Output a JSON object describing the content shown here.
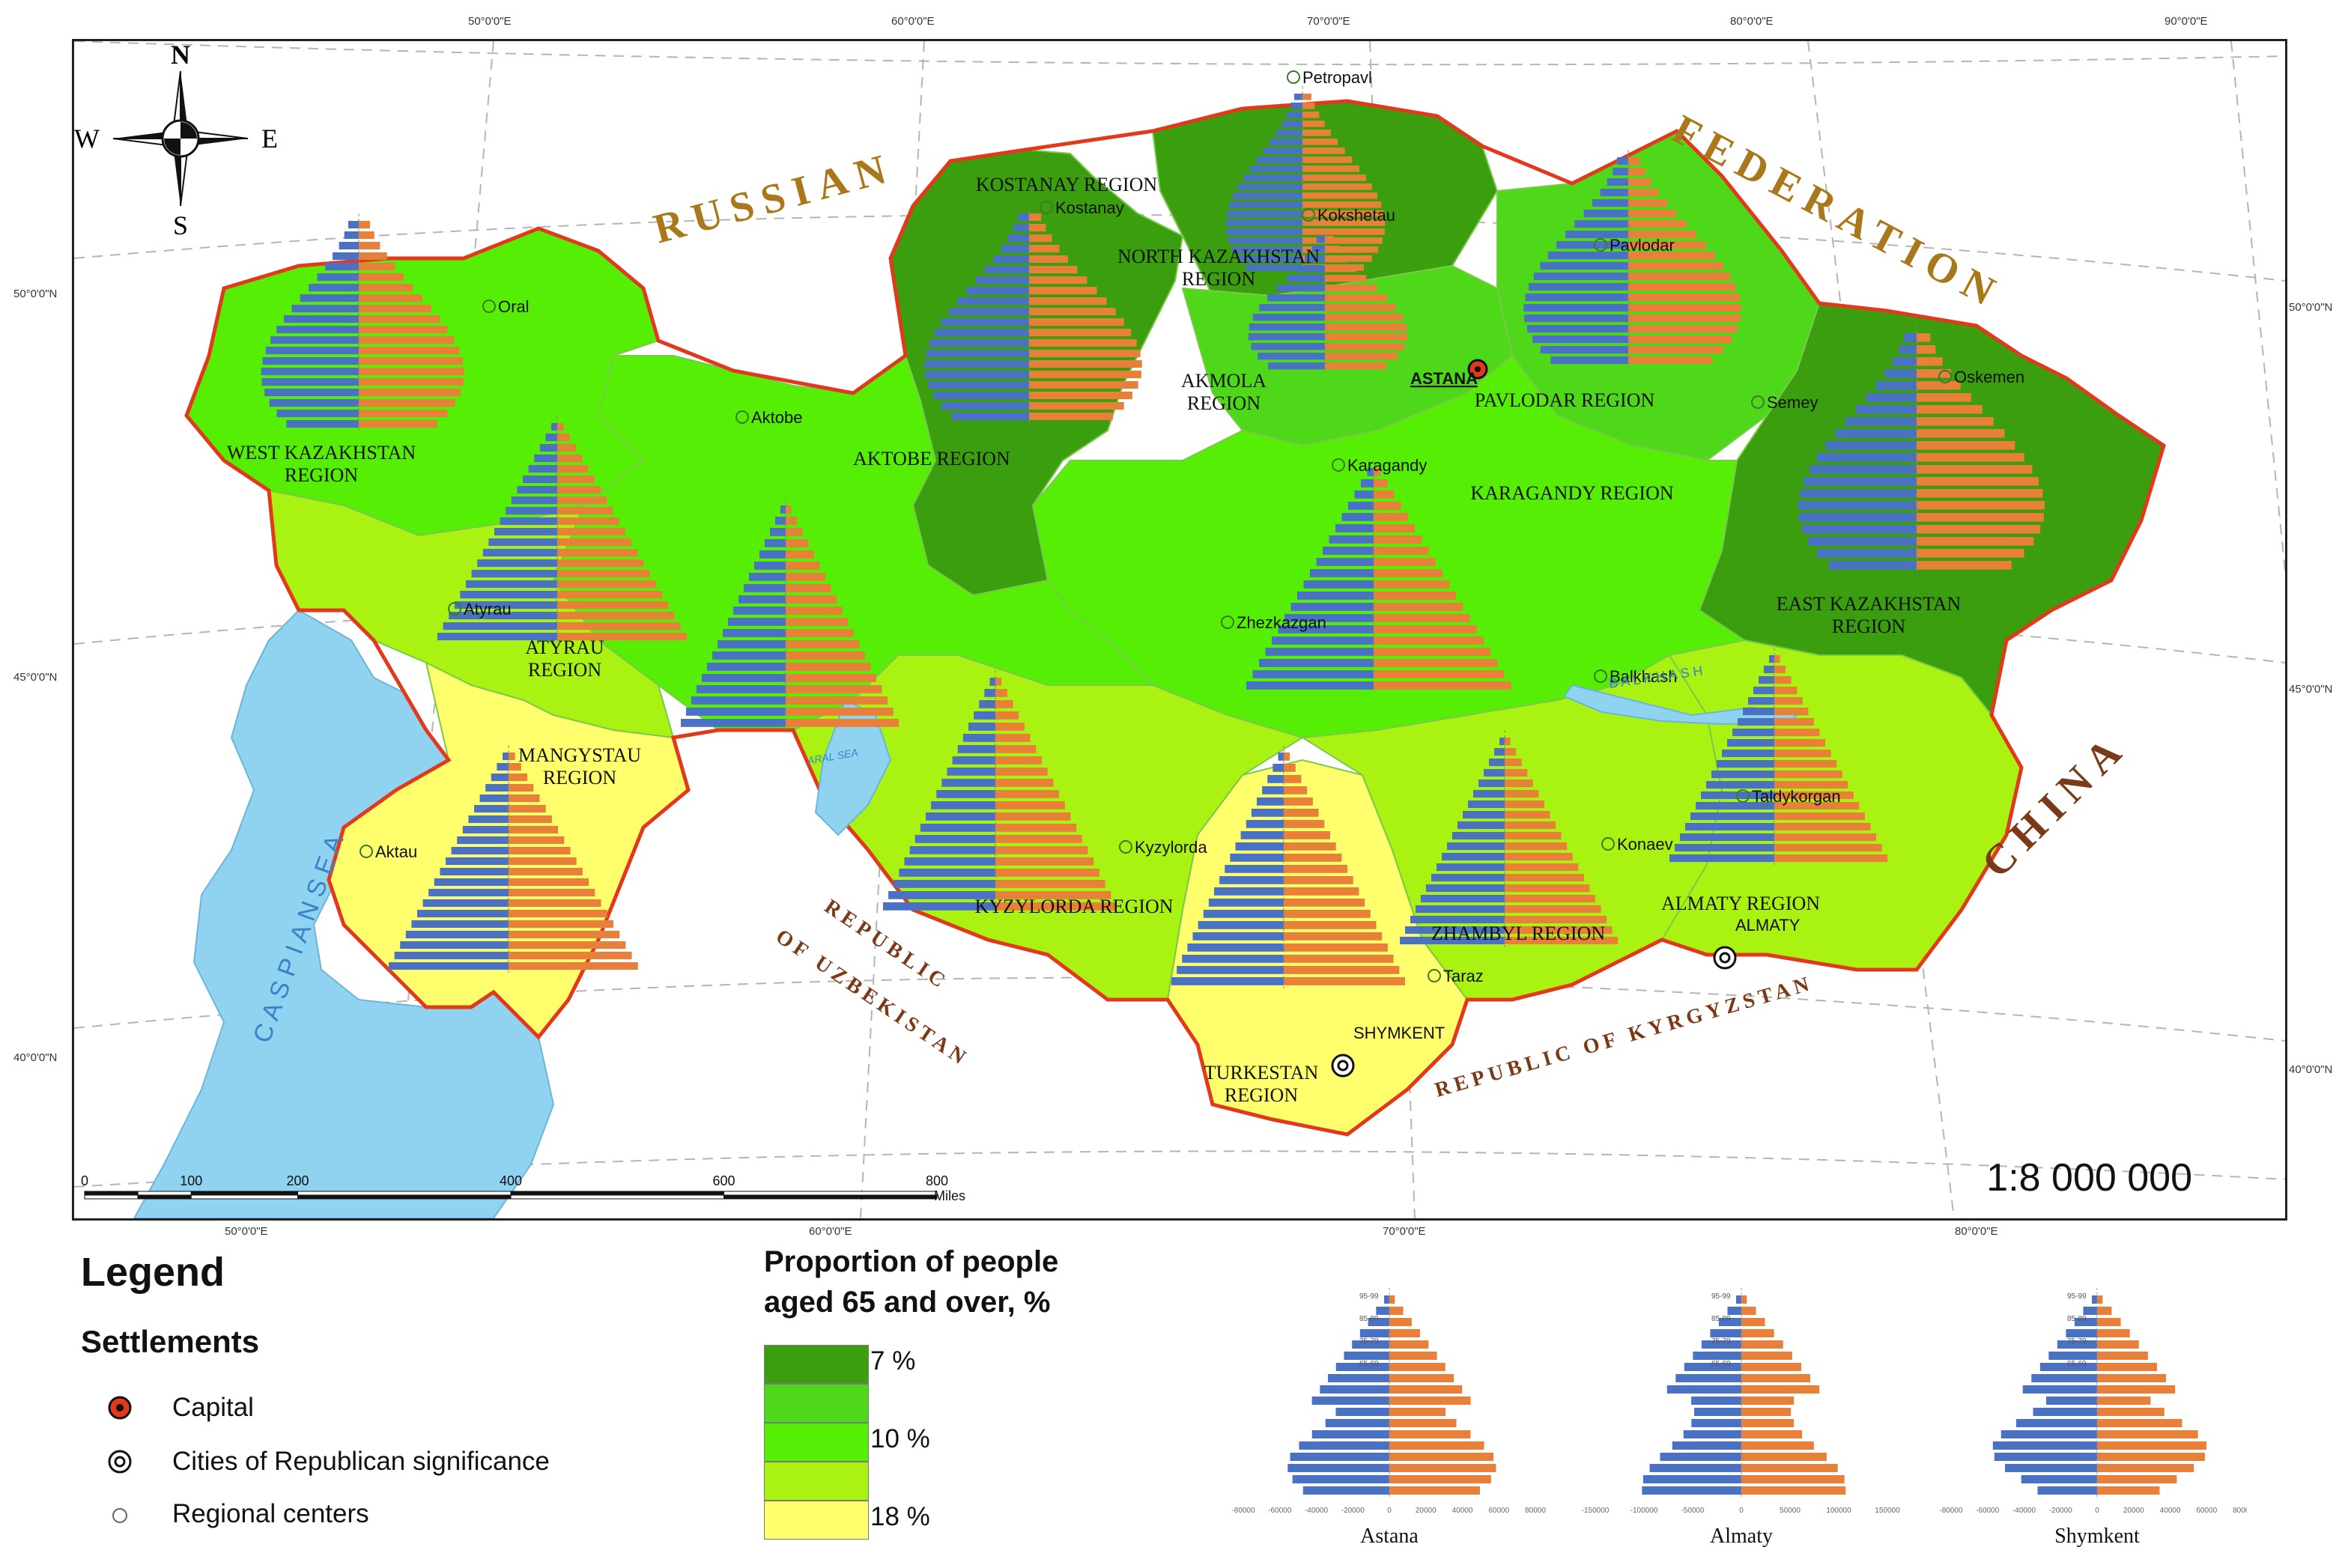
{
  "map": {
    "scale_ratio": "1:8 000 000",
    "compass": {
      "n": "N",
      "s": "S",
      "e": "E",
      "w": "W"
    },
    "countries": {
      "russia_1": "RUSSIAN",
      "russia_2": "FEDERATION",
      "china": "CHINA",
      "uzbekistan_1": "REPUBLIC",
      "uzbekistan_2": "OF UZBEKISTAN",
      "kyrgyzstan": "REPUBLIC OF KYRGYZSTAN"
    },
    "water": {
      "caspian": "C A S P I A N   S E A",
      "aral": "ARAL SEA",
      "balkhash": "B A L K H A S H"
    },
    "regions": [
      {
        "name": "WEST KAZAKHSTAN",
        "sub": "REGION"
      },
      {
        "name": "AKTOBE REGION",
        "sub": ""
      },
      {
        "name": "ATYRAU",
        "sub": "REGION"
      },
      {
        "name": "MANGYSTAU",
        "sub": "REGION"
      },
      {
        "name": "KOSTANAY REGION",
        "sub": ""
      },
      {
        "name": "NORTH KAZAKHSTAN",
        "sub": "REGION"
      },
      {
        "name": "AKMOLA",
        "sub": "REGION"
      },
      {
        "name": "PAVLODAR REGION",
        "sub": ""
      },
      {
        "name": "KARAGANDY REGION",
        "sub": ""
      },
      {
        "name": "EAST KAZAKHSTAN",
        "sub": "REGION"
      },
      {
        "name": "KYZYLORDA REGION",
        "sub": ""
      },
      {
        "name": "ZHAMBYL REGION",
        "sub": ""
      },
      {
        "name": "ALMATY REGION",
        "sub": ""
      },
      {
        "name": "TURKESTAN",
        "sub": "REGION"
      }
    ],
    "cities": [
      "Oral",
      "Aktobe",
      "Atyrau",
      "Aktau",
      "Kostanay",
      "Kokshetau",
      "ASTANA",
      "Karagandy",
      "Zhezkazgan",
      "Pavlodar",
      "Semey",
      "Oskemen",
      "Balkhash",
      "Kyzylorda",
      "Taraz",
      "SHYMKENT",
      "Konaev",
      "Taldykorgan",
      "ALMATY",
      "Petropavl"
    ],
    "longitudes_top": [
      "50°0'0\"E",
      "60°0'0\"E",
      "70°0'0\"E",
      "80°0'0\"E",
      "90°0'0\"E"
    ],
    "longitudes_bottom": [
      "50°0'0\"E",
      "60°0'0\"E",
      "70°0'0\"E",
      "80°0'0\"E"
    ],
    "latitudes_left": [
      "50°0'0\"N",
      "45°0'0\"N",
      "40°0'0\"N"
    ],
    "latitudes_right": [
      "50°0'0\"N",
      "45°0'0\"N",
      "40°0'0\"N"
    ],
    "scale_bar": {
      "ticks": [
        "0",
        "100",
        "200",
        "400",
        "600",
        "800"
      ],
      "unit": "Miles"
    },
    "pyramid_age_labels": [
      "95-99",
      "85-89",
      "75-79",
      "65-69"
    ]
  },
  "legend": {
    "title": "Legend",
    "settlements_title": "Settlements",
    "items": [
      {
        "label": "Capital"
      },
      {
        "label": "Cities of Republican significance"
      },
      {
        "label": "Regional centers"
      }
    ],
    "proportion_title_1": "Proportion of people",
    "proportion_title_2": "aged 65 and over, %",
    "classes": [
      {
        "label": "7 %",
        "color": "#3a9e0e"
      },
      {
        "label": "",
        "color": "#4fd81a"
      },
      {
        "label": "10 %",
        "color": "#55ee04"
      },
      {
        "label": "",
        "color": "#aaf212"
      },
      {
        "label": "18 %",
        "color": "#ffff6e"
      }
    ]
  },
  "city_pyramids": [
    {
      "name": "Astana",
      "axis": [
        "-80000",
        "-60000",
        "-40000",
        "-20000",
        "0",
        "20000",
        "40000",
        "60000",
        "80000"
      ]
    },
    {
      "name": "Almaty",
      "axis": [
        "-150000",
        "-100000",
        "-50000",
        "0",
        "50000",
        "100000",
        "150000"
      ]
    },
    {
      "name": "Shymkent",
      "axis": [
        "-80000",
        "-60000",
        "-40000",
        "-20000",
        "0",
        "20000",
        "40000",
        "60000",
        "80000"
      ]
    }
  ],
  "colors": {
    "male": "#4a72c4",
    "female": "#e8803a",
    "water": "#8fd3f0",
    "border": "#e2391d"
  }
}
